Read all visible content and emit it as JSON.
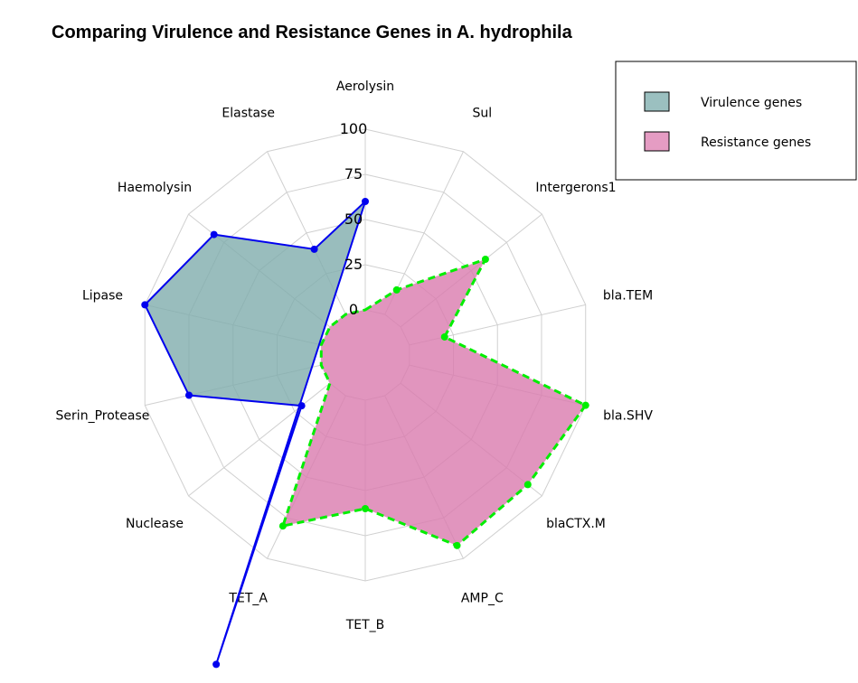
{
  "chart_data": {
    "type": "radar",
    "title": "Comparing Virulence and Resistance Genes in A. hydrophila",
    "axes": [
      "Aerolysin",
      "Sul",
      "Intergerons1",
      "bla.TEM",
      "bla.SHV",
      "blaCTX.M",
      "AMP_C",
      "TET_B",
      "TET_A",
      "Nuclease",
      "Serin_Protease",
      "Lipase",
      "Haemolysin",
      "Elastase"
    ],
    "rlim": [
      0,
      100
    ],
    "ticks": [
      "0",
      "25",
      "50",
      "75",
      "100"
    ],
    "legend_position": "top-right",
    "series": [
      {
        "name": "Virulence genes",
        "fill": "#7fadad",
        "line": "#0000ee",
        "values": [
          {
            "axis": "Aerolysin",
            "value": 60
          },
          {
            "axis": "Elastase",
            "value": 40
          },
          {
            "axis": "Haemolysin",
            "value": 82
          },
          {
            "axis": "Lipase",
            "value": 100
          },
          {
            "axis": "Serin_Protease",
            "value": 75
          },
          {
            "axis": "Nuclease",
            "value": 20
          },
          {
            "axis": "TET_A",
            "value": 165
          }
        ]
      },
      {
        "name": "Resistance genes",
        "fill": "#d97aae",
        "line": "#00ee00",
        "values": [
          {
            "axis": "Sul",
            "value": 15
          },
          {
            "axis": "Intergerons1",
            "value": 60
          },
          {
            "axis": "bla.TEM",
            "value": 20
          },
          {
            "axis": "bla.SHV",
            "value": 100
          },
          {
            "axis": "blaCTX.M",
            "value": 90
          },
          {
            "axis": "AMP_C",
            "value": 92
          },
          {
            "axis": "TET_B",
            "value": 60
          },
          {
            "axis": "TET_A",
            "value": 80
          },
          {
            "axis": "Nuclease",
            "value": 0
          },
          {
            "axis": "Serin_Protease",
            "value": 0
          },
          {
            "axis": "Lipase",
            "value": 0
          },
          {
            "axis": "Haemolysin",
            "value": 0
          },
          {
            "axis": "Elastase",
            "value": 0
          },
          {
            "axis": "Aerolysin",
            "value": 0
          }
        ]
      }
    ]
  }
}
